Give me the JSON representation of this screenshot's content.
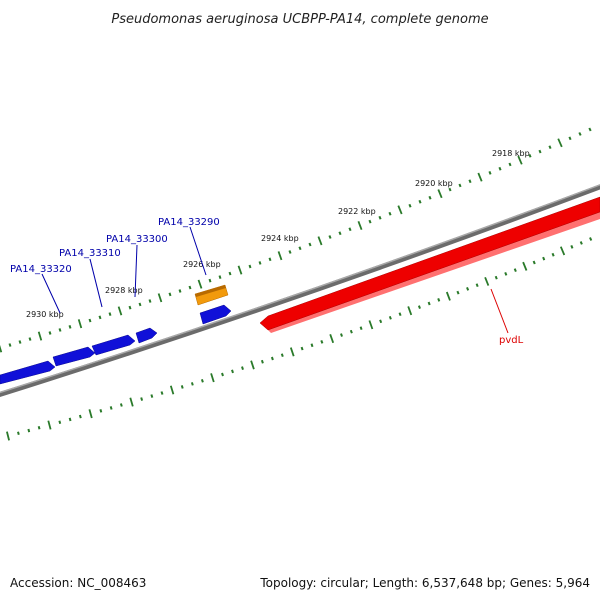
{
  "title": "Pseudomonas aeruginosa UCBPP-PA14, complete genome",
  "tick_labels": [
    "2918 kbp",
    "2920 kbp",
    "2922 kbp",
    "2924 kbp",
    "2926 kbp",
    "2928 kbp",
    "2930 kbp"
  ],
  "genes": [
    {
      "label": "PA14_33290",
      "color": "#0000aa"
    },
    {
      "label": "PA14_33300",
      "color": "#0000aa"
    },
    {
      "label": "PA14_33310",
      "color": "#0000aa"
    },
    {
      "label": "PA14_33320",
      "color": "#0000aa"
    },
    {
      "label": "pvdL",
      "color": "#dd0000"
    }
  ],
  "colors": {
    "forward_gene": "#1a1ae6",
    "reverse_gene": "#ff0000",
    "orange_gene": "#f0960a",
    "backbone": "#808080",
    "ticks": "#2a7a2a"
  },
  "footer": {
    "accession": "Accession: NC_008463",
    "info": "Topology: circular; Length: 6,537,648 bp; Genes: 5,964"
  }
}
